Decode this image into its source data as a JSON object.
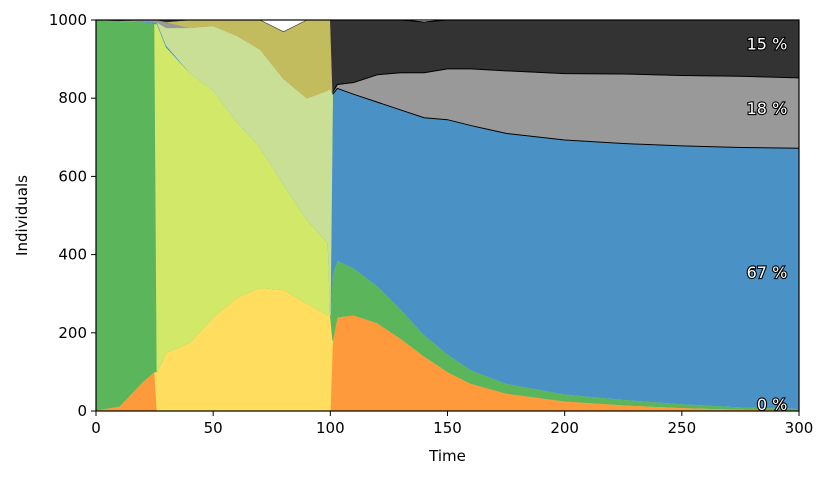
{
  "chart_data": {
    "type": "area",
    "stacked": true,
    "xlabel": "Time",
    "ylabel": "Individuals",
    "xlim": [
      0,
      300
    ],
    "ylim": [
      0,
      1000
    ],
    "xticks": [
      0,
      50,
      100,
      150,
      200,
      250,
      300
    ],
    "yticks": [
      0,
      200,
      400,
      600,
      800,
      1000
    ],
    "grid": false,
    "x": [
      0,
      10,
      20,
      25,
      26,
      30,
      40,
      50,
      60,
      70,
      80,
      90,
      99,
      100,
      101,
      103,
      110,
      120,
      130,
      140,
      150,
      160,
      175,
      200,
      225,
      250,
      275,
      300
    ],
    "series": [
      {
        "color": "#ff9a3c",
        "values": [
          2,
          12,
          75,
          100,
          0,
          0,
          0,
          0,
          0,
          0,
          0,
          0,
          0,
          0,
          180,
          240,
          245,
          225,
          185,
          140,
          100,
          70,
          45,
          25,
          15,
          8,
          4,
          2
        ]
      },
      {
        "color": "#ffdd5e",
        "values": [
          0,
          0,
          0,
          0,
          100,
          150,
          175,
          240,
          290,
          315,
          310,
          275,
          245,
          245,
          0,
          0,
          0,
          0,
          0,
          0,
          0,
          0,
          0,
          0,
          0,
          0,
          0,
          0
        ]
      },
      {
        "color": "#5bb55b",
        "values": [
          998,
          986,
          920,
          890,
          0,
          0,
          0,
          0,
          0,
          0,
          0,
          0,
          0,
          0,
          170,
          145,
          120,
          95,
          75,
          55,
          45,
          35,
          25,
          18,
          14,
          10,
          6,
          4
        ]
      },
      {
        "color": "#d2e868",
        "values": [
          0,
          0,
          0,
          0,
          890,
          780,
          690,
          580,
          450,
          360,
          270,
          215,
          185,
          0,
          0,
          0,
          0,
          0,
          0,
          0,
          0,
          0,
          0,
          0,
          0,
          0,
          0,
          0
        ]
      },
      {
        "color": "#4a92c6",
        "values": [
          0,
          0,
          2,
          4,
          4,
          5,
          0,
          0,
          0,
          0,
          0,
          0,
          0,
          0,
          460,
          440,
          445,
          470,
          510,
          555,
          600,
          625,
          640,
          650,
          655,
          660,
          664,
          666
        ]
      },
      {
        "color": "#c9df95",
        "values": [
          0,
          0,
          0,
          0,
          0,
          45,
          115,
          165,
          220,
          250,
          270,
          310,
          390,
          580,
          0,
          0,
          0,
          0,
          0,
          0,
          0,
          0,
          0,
          0,
          0,
          0,
          0,
          0
        ]
      },
      {
        "color": "#999999",
        "values": [
          0,
          0,
          3,
          6,
          6,
          15,
          0,
          0,
          0,
          0,
          0,
          0,
          0,
          0,
          5,
          10,
          30,
          70,
          95,
          115,
          130,
          145,
          160,
          170,
          178,
          180,
          182,
          180
        ]
      },
      {
        "color": "#c2bc5e",
        "values": [
          0,
          0,
          0,
          0,
          0,
          0,
          20,
          15,
          40,
          75,
          120,
          200,
          180,
          175,
          0,
          0,
          0,
          0,
          0,
          0,
          0,
          0,
          0,
          0,
          0,
          0,
          0,
          0
        ]
      },
      {
        "color": "#333333",
        "values": [
          0,
          2,
          0,
          0,
          0,
          5,
          0,
          0,
          0,
          0,
          0,
          0,
          0,
          0,
          185,
          165,
          160,
          140,
          135,
          130,
          125,
          125,
          130,
          137,
          138,
          142,
          144,
          148
        ]
      }
    ],
    "annotations": [
      {
        "text": "15 %",
        "x": 295,
        "y": 940
      },
      {
        "text": "18 %",
        "x": 295,
        "y": 775
      },
      {
        "text": "67 %",
        "x": 295,
        "y": 355
      },
      {
        "text": "0 %",
        "x": 295,
        "y": 18
      }
    ]
  }
}
